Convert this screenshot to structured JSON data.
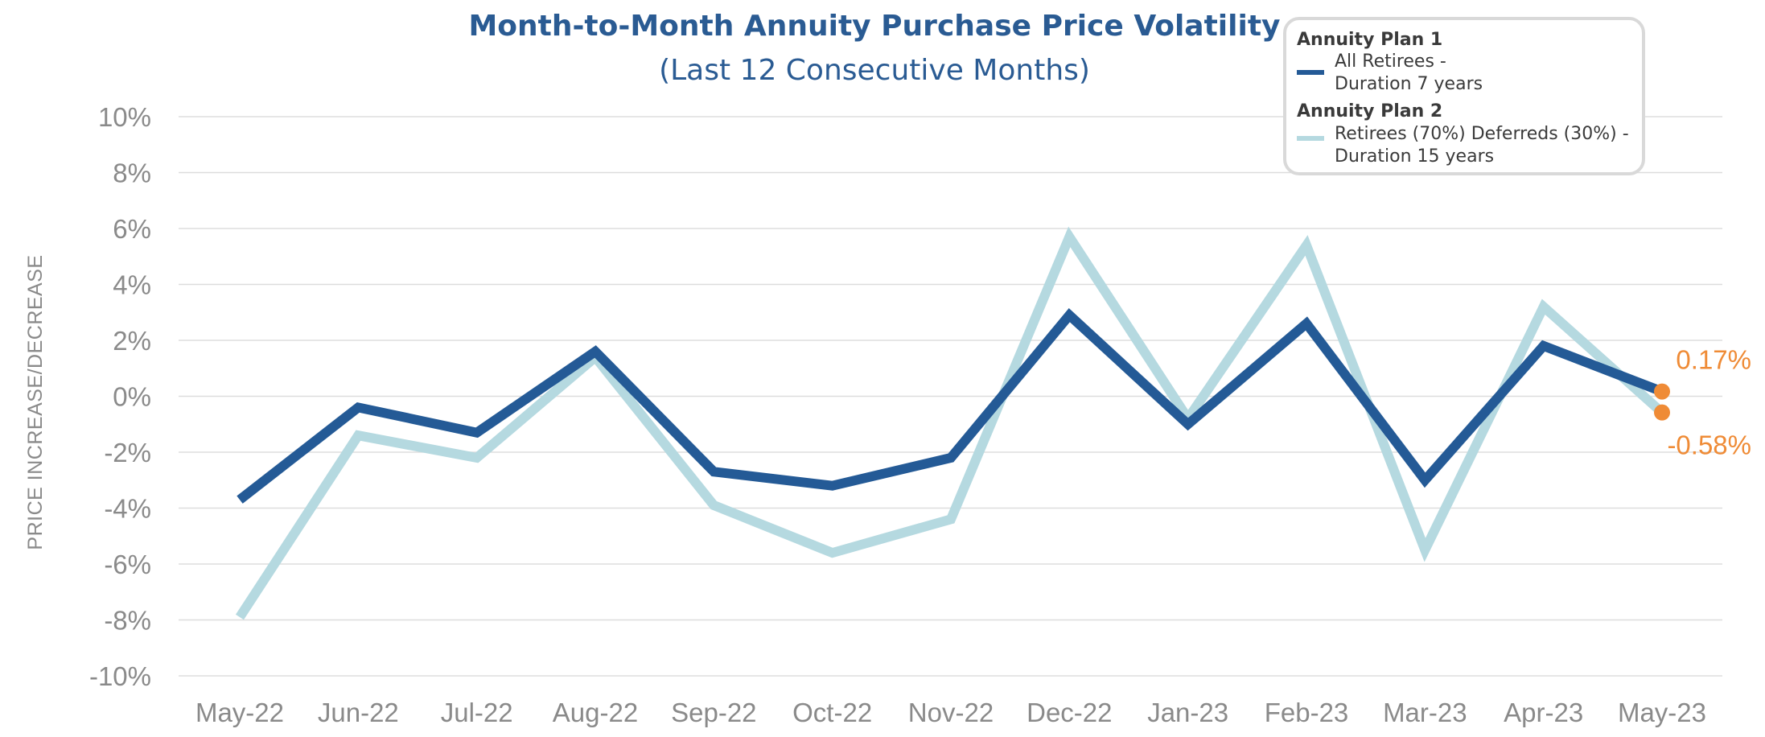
{
  "chart_data": {
    "type": "line",
    "title": "Month-to-Month Annuity Purchase Price Volatility",
    "subtitle": "(Last 12 Consecutive Months)",
    "ylabel": "PRICE INCREASE/DECREASE",
    "xlabel": "",
    "ylim": [
      -10,
      10
    ],
    "yticks": [
      10,
      8,
      6,
      4,
      2,
      0,
      -2,
      -4,
      -6,
      -8,
      -10
    ],
    "ytick_labels": [
      "10%",
      "8%",
      "6%",
      "4%",
      "2%",
      "0%",
      "-2%",
      "-4%",
      "-6%",
      "-8%",
      "-10%"
    ],
    "grid": true,
    "legend_position": "top-right",
    "categories": [
      "May-22",
      "Jun-22",
      "Jul-22",
      "Aug-22",
      "Sep-22",
      "Oct-22",
      "Nov-22",
      "Dec-22",
      "Jan-23",
      "Feb-23",
      "Mar-23",
      "Apr-23",
      "May-23"
    ],
    "series": [
      {
        "name": "Annuity Plan 1",
        "description": [
          "All Retirees -",
          "Duration 7 years"
        ],
        "color": "#245a96",
        "values": [
          -3.7,
          -0.4,
          -1.3,
          1.6,
          -2.7,
          -3.2,
          -2.2,
          2.9,
          -1.0,
          2.6,
          -3.0,
          1.8,
          0.17
        ]
      },
      {
        "name": "Annuity Plan 2",
        "description": [
          "Retirees (70%) Deferreds (30%) -",
          "Duration 15 years"
        ],
        "color": "#b5d9e0",
        "values": [
          -7.9,
          -1.4,
          -2.2,
          1.4,
          -3.9,
          -5.6,
          -4.4,
          5.7,
          -0.8,
          5.4,
          -5.5,
          3.2,
          -0.58
        ]
      }
    ],
    "annotations": [
      {
        "text": "0.17%",
        "series": 0,
        "index": 12,
        "color": "#ef8b36"
      },
      {
        "text": "-0.58%",
        "series": 1,
        "index": 12,
        "color": "#ef8b36"
      }
    ]
  }
}
